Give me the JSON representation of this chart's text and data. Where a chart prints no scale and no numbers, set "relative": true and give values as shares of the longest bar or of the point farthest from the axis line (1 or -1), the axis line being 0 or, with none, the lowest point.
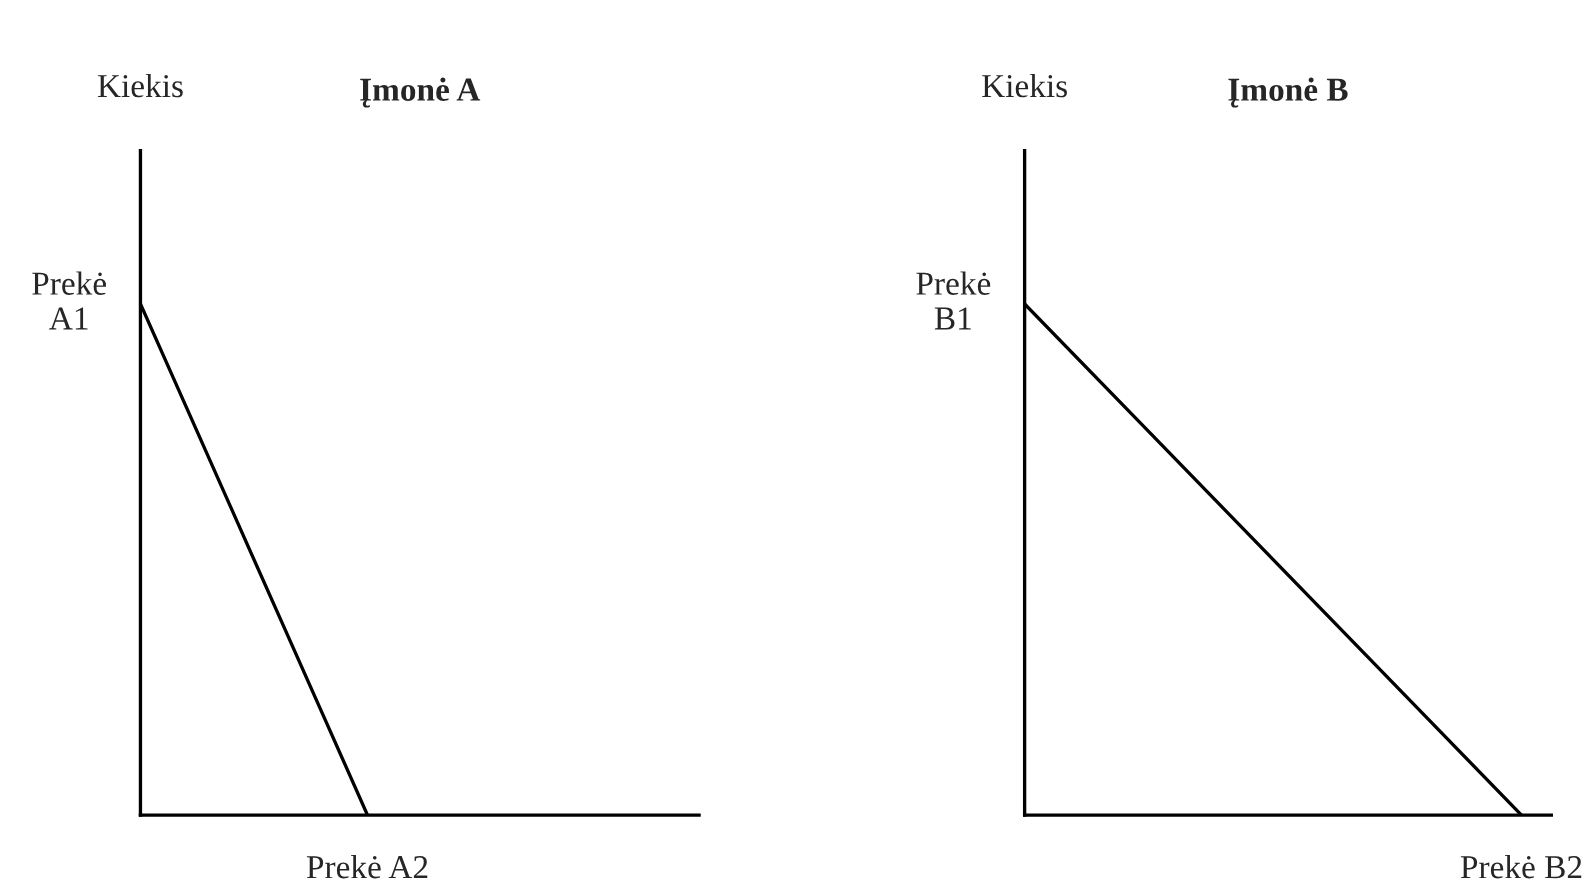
{
  "chart_data": [
    {
      "type": "line",
      "title": "Įmonė A",
      "ylabel": "Kiekis",
      "xlabel": "Prekė A2",
      "relative": true,
      "color": "#000000",
      "categories": [
        null,
        null,
        null,
        null,
        null,
        null,
        null,
        null,
        null,
        null,
        null,
        null,
        null
      ],
      "values": [
        1,
        0.8,
        0.6,
        0.4,
        0.2,
        0,
        null,
        null,
        null,
        null,
        null,
        null,
        null
      ],
      "annotations": [
        "Prekė\nA1"
      ]
    },
    {
      "type": "line",
      "title": "Įmonė B",
      "ylabel": "Kiekis",
      "xlabel": "Prekė B2",
      "relative": true,
      "color": "#000000",
      "categories": [
        null,
        null,
        null,
        null,
        null,
        null
      ],
      "values": [
        1,
        0.8,
        0.6,
        0.4,
        0.2,
        0
      ],
      "annotations": [
        "Prekė\nB1"
      ]
    }
  ]
}
